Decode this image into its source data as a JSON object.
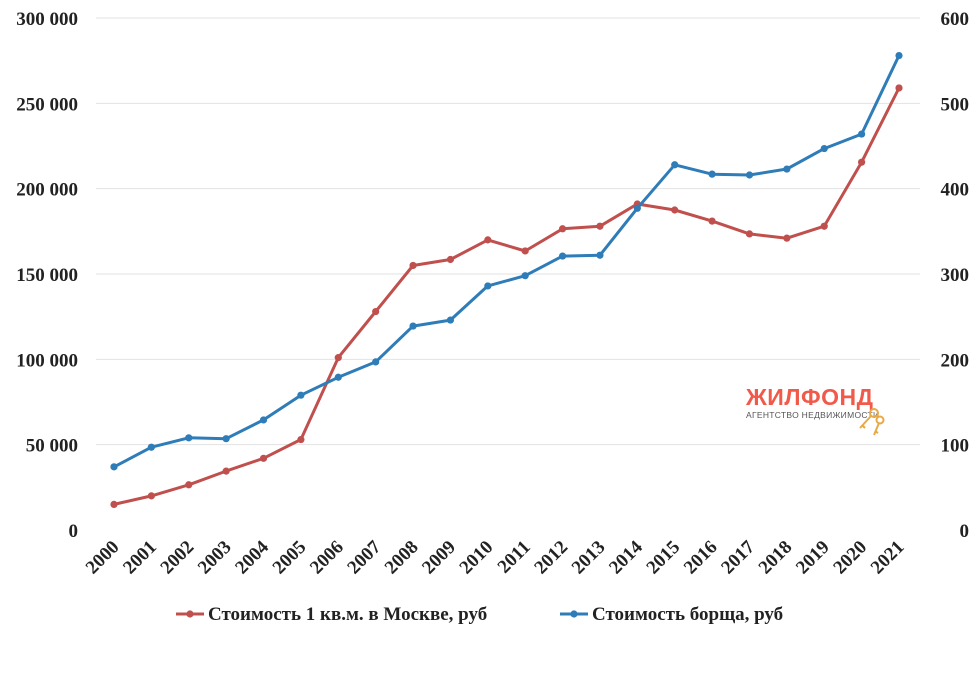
{
  "chart_data": {
    "type": "line",
    "categories": [
      "2000",
      "2001",
      "2002",
      "2003",
      "2004",
      "2005",
      "2006",
      "2007",
      "2008",
      "2009",
      "2010",
      "2011",
      "2012",
      "2013",
      "2014",
      "2015",
      "2016",
      "2017",
      "2018",
      "2019",
      "2020",
      "2021"
    ],
    "series": [
      {
        "name": "Стоимость 1 кв.м. в Москве, руб",
        "axis": "left",
        "color": "#c0504d",
        "values": [
          15000,
          20000,
          26500,
          34500,
          42000,
          53000,
          101000,
          128000,
          155000,
          158500,
          170000,
          163500,
          176500,
          178000,
          191000,
          187500,
          181000,
          173500,
          171000,
          178000,
          215500,
          259000
        ]
      },
      {
        "name": "Стоимость борща, руб",
        "axis": "right",
        "color": "#2e7cb8",
        "values": [
          74,
          97,
          108,
          107,
          129,
          158,
          179,
          197,
          239,
          246,
          286,
          298,
          321,
          322,
          377,
          428,
          417,
          416,
          423,
          447,
          464,
          556
        ]
      }
    ],
    "y_left": {
      "range": [
        0,
        300000
      ],
      "ticks": [
        "0",
        "50 000",
        "100 000",
        "150 000",
        "200 000",
        "250 000",
        "300 000"
      ]
    },
    "y_right": {
      "range": [
        0,
        600
      ],
      "ticks": [
        "0",
        "100",
        "200",
        "300",
        "400",
        "500",
        "600"
      ]
    },
    "grid": true,
    "legend_position": "bottom"
  },
  "watermark": {
    "title": "ЖИЛФОНД",
    "subtitle": "АГЕНТСТВО НЕДВИЖИМОСТИ",
    "icon": "keys-icon"
  }
}
